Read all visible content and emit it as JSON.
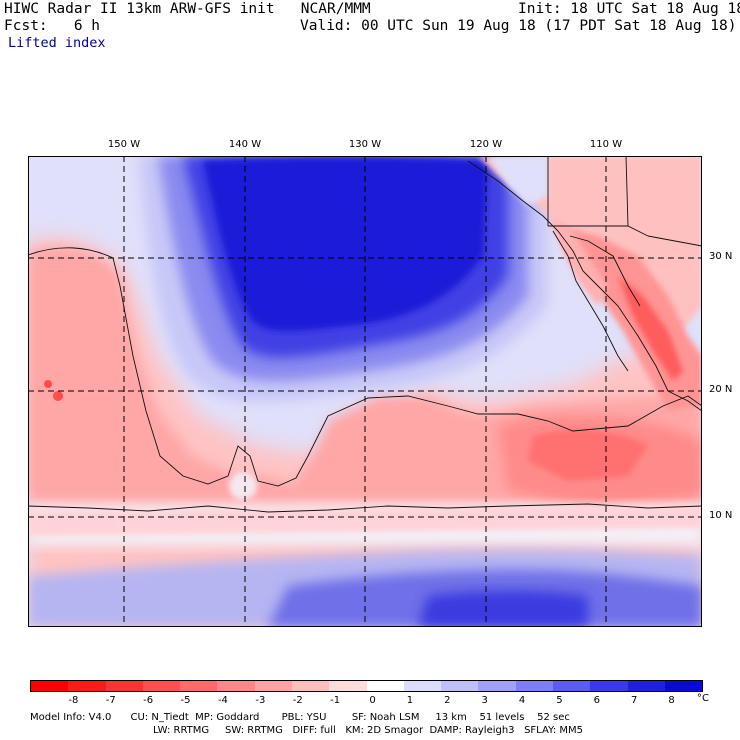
{
  "header": {
    "title_left": "HIWC Radar II 13km ARW-GFS init   NCAR/MMM",
    "init": "Init: 18 UTC Sat 18 Aug 18",
    "fcst": "Fcst:   6 h",
    "valid": "Valid: 00 UTC Sun 19 Aug 18 (17 PDT Sat 18 Aug 18)",
    "field": "Lifted index"
  },
  "map": {
    "longitude_labels": [
      "150 W",
      "140 W",
      "130 W",
      "120 W",
      "110 W"
    ],
    "latitude_labels": [
      "30 N",
      "20 N",
      "10 N"
    ]
  },
  "colorbar": {
    "labels": [
      "-8",
      "-7",
      "-6",
      "-5",
      "-4",
      "-3",
      "-2",
      "-1",
      "0",
      "1",
      "2",
      "3",
      "4",
      "5",
      "6",
      "7",
      "8"
    ],
    "colors": [
      "#ff1a1a",
      "#ff3333",
      "#ff5050",
      "#ff6b6b",
      "#ff8787",
      "#ffa3a3",
      "#ffbfbf",
      "#ffdcdc",
      "#ffffff",
      "#dcdcff",
      "#bfbffc",
      "#a0a0f8",
      "#7f7ff4",
      "#5c5cef",
      "#3a3aea",
      "#1f1fe6",
      "#0a0ad8"
    ],
    "unit": "°C"
  },
  "model_info": {
    "line1": "Model Info: V4.0      CU: N_Tiedt  MP: Goddard       PBL: YSU        SF: Noah LSM     13 km    51 levels    52 sec",
    "line2": "LW: RRTMG     SW: RRTMG   DIFF: full   KM: 2D Smagor  DAMP: Rayleigh3   SFLAY: MM5"
  }
}
